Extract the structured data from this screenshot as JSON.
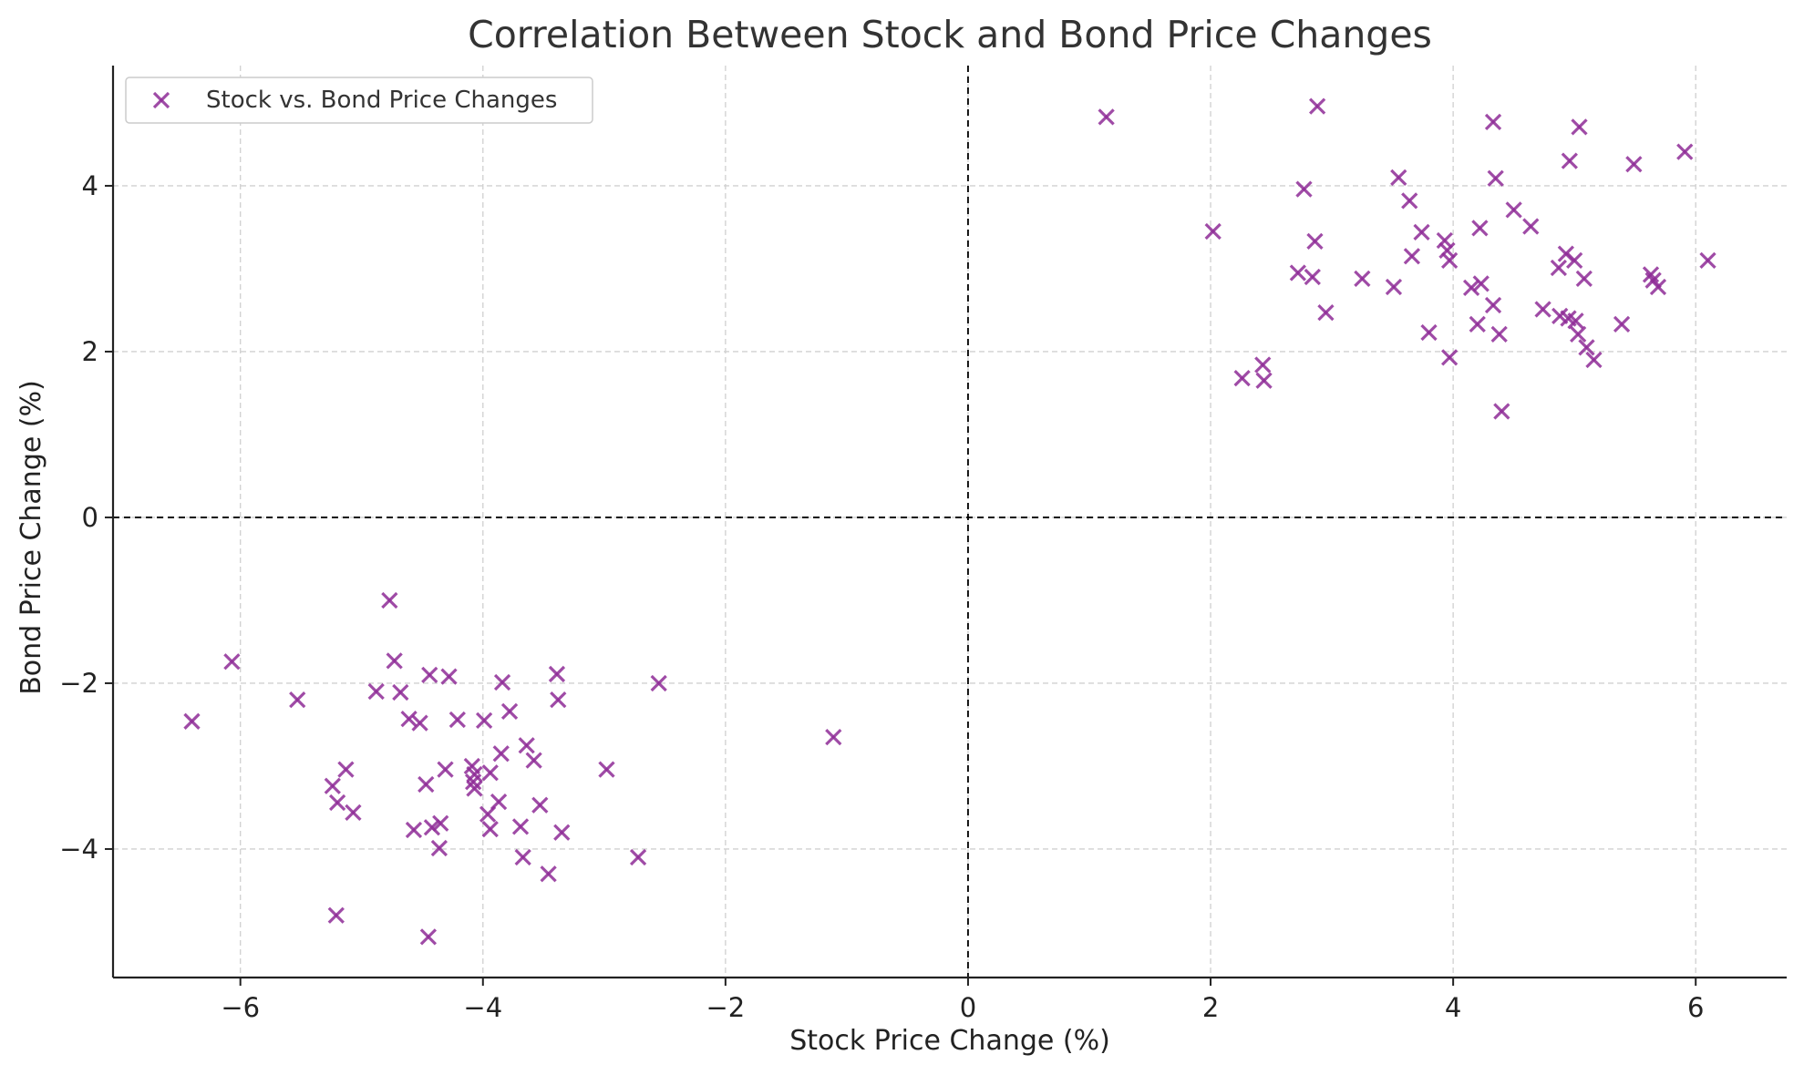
{
  "chart_data": {
    "type": "scatter",
    "title": "Correlation Between Stock and Bond Price Changes",
    "xlabel": "Stock Price Change (%)",
    "ylabel": "Bond Price Change (%)",
    "xlim": [
      -7.05,
      6.75
    ],
    "ylim": [
      -5.55,
      5.45
    ],
    "xticks": [
      -6,
      -4,
      -2,
      0,
      2,
      4,
      6
    ],
    "yticks": [
      -4,
      -2,
      0,
      2,
      4
    ],
    "xtick_labels": [
      "−6",
      "−4",
      "−2",
      "0",
      "2",
      "4",
      "6"
    ],
    "ytick_labels": [
      "−4",
      "−2",
      "0",
      "2",
      "4"
    ],
    "grid": true,
    "reference_lines": {
      "x": 0,
      "y": 0
    },
    "legend": {
      "placement": "top-left"
    },
    "series": [
      {
        "name": "Stock vs. Bond Price Changes",
        "marker": "x",
        "color": "#8e2c96",
        "points": [
          [
            1.14,
            4.83
          ],
          [
            2.88,
            4.96
          ],
          [
            4.33,
            4.77
          ],
          [
            5.04,
            4.71
          ],
          [
            5.91,
            4.41
          ],
          [
            4.96,
            4.3
          ],
          [
            5.49,
            4.26
          ],
          [
            3.55,
            4.1
          ],
          [
            4.35,
            4.09
          ],
          [
            2.77,
            3.96
          ],
          [
            3.64,
            3.82
          ],
          [
            4.5,
            3.71
          ],
          [
            4.64,
            3.51
          ],
          [
            2.02,
            3.45
          ],
          [
            3.74,
            3.44
          ],
          [
            4.22,
            3.49
          ],
          [
            2.86,
            3.33
          ],
          [
            3.93,
            3.34
          ],
          [
            3.95,
            3.22
          ],
          [
            4.93,
            3.18
          ],
          [
            3.66,
            3.15
          ],
          [
            3.97,
            3.1
          ],
          [
            5.0,
            3.1
          ],
          [
            6.1,
            3.1
          ],
          [
            4.87,
            3.01
          ],
          [
            2.72,
            2.95
          ],
          [
            2.84,
            2.9
          ],
          [
            3.25,
            2.88
          ],
          [
            5.08,
            2.88
          ],
          [
            5.63,
            2.93
          ],
          [
            5.65,
            2.86
          ],
          [
            4.23,
            2.82
          ],
          [
            4.15,
            2.77
          ],
          [
            3.51,
            2.78
          ],
          [
            5.69,
            2.78
          ],
          [
            4.33,
            2.56
          ],
          [
            4.74,
            2.51
          ],
          [
            2.95,
            2.47
          ],
          [
            4.88,
            2.43
          ],
          [
            4.95,
            2.4
          ],
          [
            5.01,
            2.37
          ],
          [
            4.2,
            2.33
          ],
          [
            5.39,
            2.33
          ],
          [
            3.8,
            2.23
          ],
          [
            4.38,
            2.21
          ],
          [
            5.03,
            2.21
          ],
          [
            5.1,
            2.05
          ],
          [
            3.97,
            1.93
          ],
          [
            5.16,
            1.9
          ],
          [
            2.43,
            1.84
          ],
          [
            2.26,
            1.68
          ],
          [
            2.44,
            1.65
          ],
          [
            4.4,
            1.28
          ],
          [
            -4.77,
            -1.0
          ],
          [
            -6.07,
            -1.74
          ],
          [
            -4.73,
            -1.73
          ],
          [
            -4.44,
            -1.9
          ],
          [
            -4.28,
            -1.92
          ],
          [
            -3.39,
            -1.89
          ],
          [
            -2.55,
            -2.0
          ],
          [
            -3.84,
            -1.99
          ],
          [
            -4.88,
            -2.1
          ],
          [
            -4.68,
            -2.11
          ],
          [
            -5.53,
            -2.2
          ],
          [
            -3.38,
            -2.2
          ],
          [
            -3.78,
            -2.34
          ],
          [
            -6.4,
            -2.46
          ],
          [
            -4.61,
            -2.43
          ],
          [
            -4.21,
            -2.44
          ],
          [
            -3.99,
            -2.45
          ],
          [
            -4.52,
            -2.48
          ],
          [
            -1.11,
            -2.65
          ],
          [
            -3.64,
            -2.75
          ],
          [
            -3.85,
            -2.85
          ],
          [
            -3.58,
            -2.93
          ],
          [
            -4.09,
            -3.0
          ],
          [
            -5.13,
            -3.04
          ],
          [
            -4.31,
            -3.04
          ],
          [
            -2.98,
            -3.04
          ],
          [
            -4.07,
            -3.1
          ],
          [
            -3.94,
            -3.08
          ],
          [
            -4.08,
            -3.19
          ],
          [
            -4.47,
            -3.22
          ],
          [
            -5.24,
            -3.24
          ],
          [
            -4.07,
            -3.27
          ],
          [
            -5.2,
            -3.44
          ],
          [
            -3.87,
            -3.43
          ],
          [
            -3.53,
            -3.47
          ],
          [
            -5.07,
            -3.56
          ],
          [
            -3.96,
            -3.58
          ],
          [
            -4.35,
            -3.69
          ],
          [
            -3.94,
            -3.76
          ],
          [
            -3.69,
            -3.73
          ],
          [
            -4.42,
            -3.74
          ],
          [
            -4.57,
            -3.77
          ],
          [
            -3.35,
            -3.8
          ],
          [
            -4.36,
            -3.99
          ],
          [
            -3.67,
            -4.1
          ],
          [
            -2.72,
            -4.1
          ],
          [
            -3.46,
            -4.3
          ],
          [
            -5.21,
            -4.8
          ],
          [
            -4.45,
            -5.06
          ]
        ]
      }
    ]
  }
}
